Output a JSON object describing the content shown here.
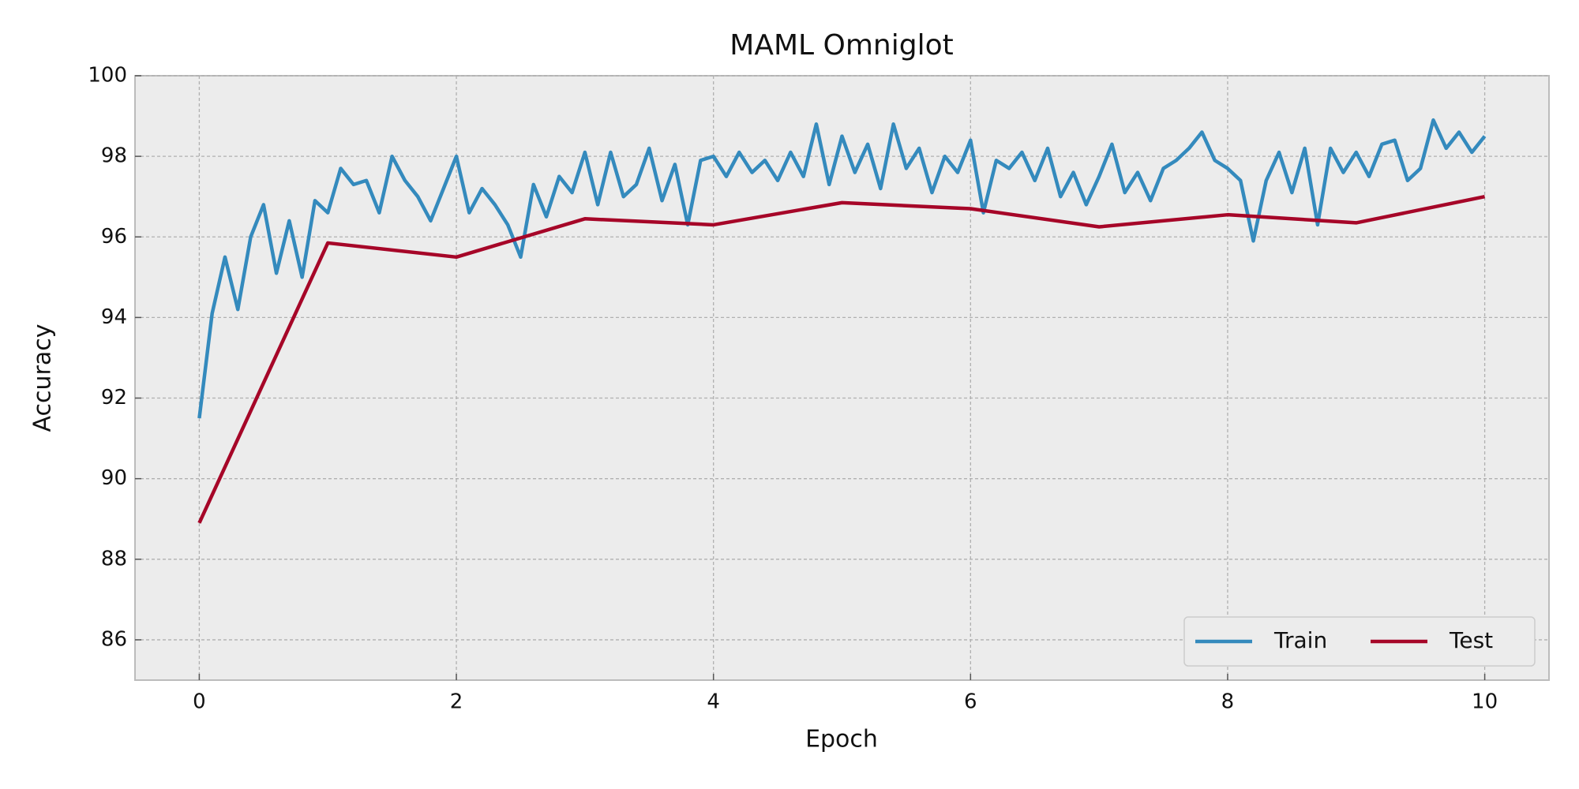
{
  "chart_data": {
    "type": "line",
    "title": "MAML Omniglot",
    "x_label": "Epoch",
    "y_label": "Accuracy",
    "xlim": [
      -0.5,
      10.5
    ],
    "ylim": [
      85,
      100
    ],
    "xticks": [
      0,
      2,
      4,
      6,
      8,
      10
    ],
    "yticks": [
      86,
      88,
      90,
      92,
      94,
      96,
      98,
      100
    ],
    "grid": true,
    "legend_loc": "lower right",
    "series": [
      {
        "name": "Train",
        "color": "#348abd",
        "x": [
          0,
          0.1,
          0.2,
          0.3,
          0.4,
          0.5,
          0.6,
          0.7,
          0.8,
          0.9,
          1,
          1.1,
          1.2,
          1.3,
          1.4,
          1.5,
          1.6,
          1.7,
          1.8,
          1.9,
          2,
          2.1,
          2.2,
          2.3,
          2.4,
          2.5,
          2.6,
          2.7,
          2.8,
          2.9,
          3,
          3.1,
          3.2,
          3.3,
          3.4,
          3.5,
          3.6,
          3.7,
          3.8,
          3.9,
          4,
          4.1,
          4.2,
          4.3,
          4.4,
          4.5,
          4.6,
          4.7,
          4.8,
          4.9,
          5,
          5.1,
          5.2,
          5.3,
          5.4,
          5.5,
          5.6,
          5.7,
          5.8,
          5.9,
          6,
          6.1,
          6.2,
          6.3,
          6.4,
          6.5,
          6.6,
          6.7,
          6.8,
          6.9,
          7,
          7.1,
          7.2,
          7.3,
          7.4,
          7.5,
          7.6,
          7.7,
          7.8,
          7.9,
          8,
          8.1,
          8.2,
          8.3,
          8.4,
          8.5,
          8.6,
          8.7,
          8.8,
          8.9,
          9,
          9.1,
          9.2,
          9.3,
          9.4,
          9.5,
          9.6,
          9.7,
          9.8,
          9.9,
          10
        ],
        "values": [
          91.5,
          94.1,
          95.5,
          94.2,
          96.0,
          96.8,
          95.1,
          96.4,
          95.0,
          96.9,
          96.6,
          97.7,
          97.3,
          97.4,
          96.6,
          98.0,
          97.4,
          97.0,
          96.4,
          97.2,
          98.0,
          96.6,
          97.2,
          96.8,
          96.3,
          95.5,
          97.3,
          96.5,
          97.5,
          97.1,
          98.1,
          96.8,
          98.1,
          97.0,
          97.3,
          98.2,
          96.9,
          97.8,
          96.3,
          97.9,
          98.0,
          97.5,
          98.1,
          97.6,
          97.9,
          97.4,
          98.1,
          97.5,
          98.8,
          97.3,
          98.5,
          97.6,
          98.3,
          97.2,
          98.8,
          97.7,
          98.2,
          97.1,
          98.0,
          97.6,
          98.4,
          96.6,
          97.9,
          97.7,
          98.1,
          97.4,
          98.2,
          97.0,
          97.6,
          96.8,
          97.5,
          98.3,
          97.1,
          97.6,
          96.9,
          97.7,
          97.9,
          98.2,
          98.6,
          97.9,
          97.7,
          97.4,
          95.9,
          97.4,
          98.1,
          97.1,
          98.2,
          96.3,
          98.2,
          97.6,
          98.1,
          97.5,
          98.3,
          98.4,
          97.4,
          97.7,
          98.9,
          98.2,
          98.6,
          98.1,
          98.5
        ]
      },
      {
        "name": "Test",
        "color": "#a60628",
        "x": [
          0,
          1,
          2,
          3,
          4,
          5,
          6,
          7,
          8,
          9,
          10
        ],
        "values": [
          88.9,
          95.85,
          95.5,
          96.45,
          96.3,
          96.85,
          96.7,
          96.25,
          96.55,
          96.35,
          97.0
        ]
      }
    ]
  }
}
